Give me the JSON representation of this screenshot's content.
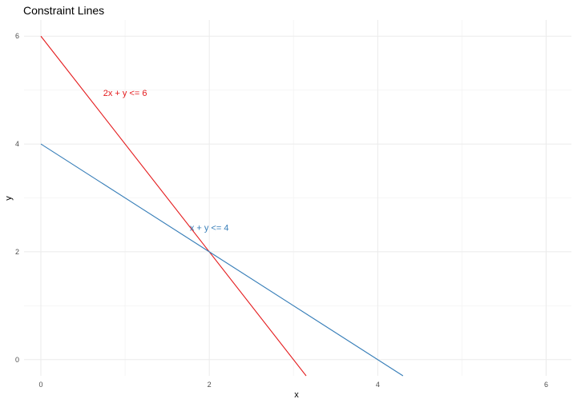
{
  "chart_data": {
    "type": "line",
    "title": "Constraint Lines",
    "xlabel": "x",
    "ylabel": "y",
    "xlim": [
      -0.2,
      6.3
    ],
    "ylim": [
      -0.3,
      6.3
    ],
    "x_major_ticks": [
      0,
      2,
      4,
      6
    ],
    "y_major_ticks": [
      0,
      2,
      4,
      6
    ],
    "x_minor_ticks": [
      1,
      3,
      5
    ],
    "y_minor_ticks": [
      1,
      3,
      5
    ],
    "grid": true,
    "series": [
      {
        "color": "#e41a1c",
        "x": [
          0,
          3.15
        ],
        "y": [
          6,
          -0.3
        ]
      },
      {
        "color": "#377eb8",
        "x": [
          0,
          4.3
        ],
        "y": [
          4,
          -0.3
        ]
      }
    ],
    "annotations": [
      {
        "text": "2x + y <= 6",
        "x": 1.0,
        "y": 4.95,
        "color": "#e41a1c"
      },
      {
        "text": "x + y <= 4",
        "x": 2.0,
        "y": 2.45,
        "color": "#377eb8"
      }
    ]
  }
}
